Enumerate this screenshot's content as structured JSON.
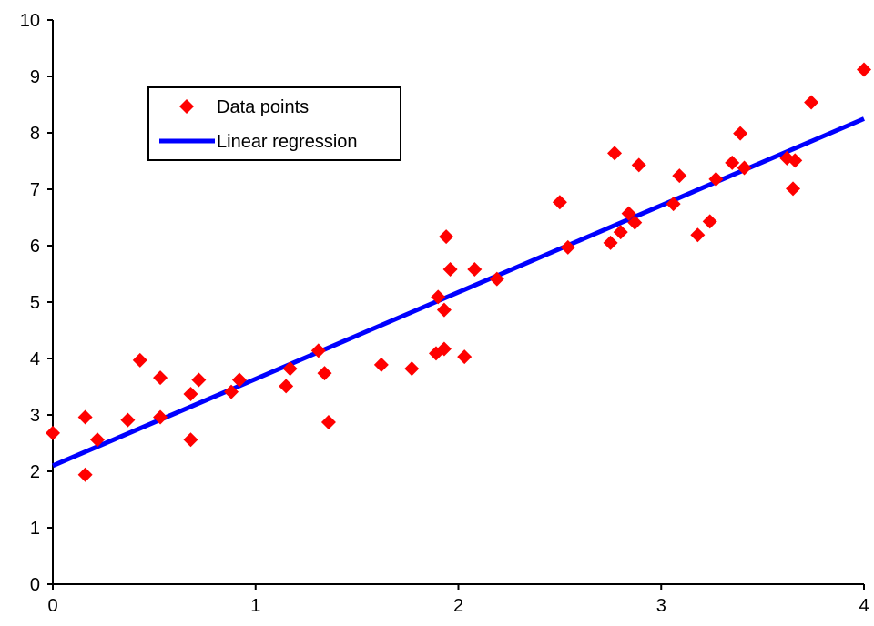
{
  "chart_data": {
    "type": "scatter",
    "title": "",
    "xlabel": "",
    "ylabel": "",
    "xlim": [
      0,
      4
    ],
    "ylim": [
      0,
      10
    ],
    "x_ticks": [
      "0",
      "1",
      "2",
      "3",
      "4"
    ],
    "y_ticks": [
      "0",
      "1",
      "2",
      "3",
      "4",
      "5",
      "6",
      "7",
      "8",
      "9",
      "10"
    ],
    "grid": false,
    "legend_position": "top-left",
    "series": [
      {
        "name": "Data points",
        "type": "scatter",
        "color": "#ff0000",
        "marker": "diamond",
        "points": [
          [
            0.0,
            2.68
          ],
          [
            0.16,
            2.96
          ],
          [
            0.16,
            1.94
          ],
          [
            0.22,
            2.56
          ],
          [
            0.37,
            2.91
          ],
          [
            0.43,
            3.97
          ],
          [
            0.53,
            2.96
          ],
          [
            0.53,
            3.66
          ],
          [
            0.68,
            3.37
          ],
          [
            0.68,
            2.56
          ],
          [
            0.72,
            3.62
          ],
          [
            0.88,
            3.41
          ],
          [
            0.92,
            3.62
          ],
          [
            1.15,
            3.51
          ],
          [
            1.17,
            3.82
          ],
          [
            1.31,
            4.14
          ],
          [
            1.34,
            3.74
          ],
          [
            1.36,
            2.87
          ],
          [
            1.62,
            3.89
          ],
          [
            1.77,
            3.82
          ],
          [
            1.89,
            4.09
          ],
          [
            1.9,
            5.09
          ],
          [
            1.93,
            4.17
          ],
          [
            1.93,
            4.86
          ],
          [
            1.94,
            6.16
          ],
          [
            1.96,
            5.58
          ],
          [
            2.03,
            4.03
          ],
          [
            2.08,
            5.58
          ],
          [
            2.19,
            5.41
          ],
          [
            2.5,
            6.77
          ],
          [
            2.54,
            5.97
          ],
          [
            2.75,
            6.05
          ],
          [
            2.77,
            7.64
          ],
          [
            2.8,
            6.24
          ],
          [
            2.84,
            6.57
          ],
          [
            2.87,
            6.41
          ],
          [
            2.89,
            7.43
          ],
          [
            3.06,
            6.74
          ],
          [
            3.09,
            7.24
          ],
          [
            3.18,
            6.19
          ],
          [
            3.24,
            6.43
          ],
          [
            3.27,
            7.18
          ],
          [
            3.35,
            7.47
          ],
          [
            3.39,
            7.99
          ],
          [
            3.41,
            7.38
          ],
          [
            3.62,
            7.55
          ],
          [
            3.65,
            7.01
          ],
          [
            3.66,
            7.51
          ],
          [
            3.74,
            8.54
          ],
          [
            4.0,
            9.12
          ]
        ]
      },
      {
        "name": "Linear regression",
        "type": "line",
        "color": "#0000ff",
        "points": [
          [
            0.0,
            2.1
          ],
          [
            4.0,
            8.25
          ]
        ]
      }
    ]
  }
}
